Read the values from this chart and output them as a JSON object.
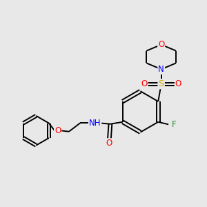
{
  "background_color": "#e8e8e8",
  "bond_color": "#000000",
  "atom_colors": {
    "O": "#ff0000",
    "N": "#0000ff",
    "S": "#ccaa00",
    "F": "#228822",
    "H": "#888888",
    "C": "#000000"
  },
  "font_size": 8.5,
  "figsize": [
    3.0,
    3.0
  ],
  "dpi": 100
}
